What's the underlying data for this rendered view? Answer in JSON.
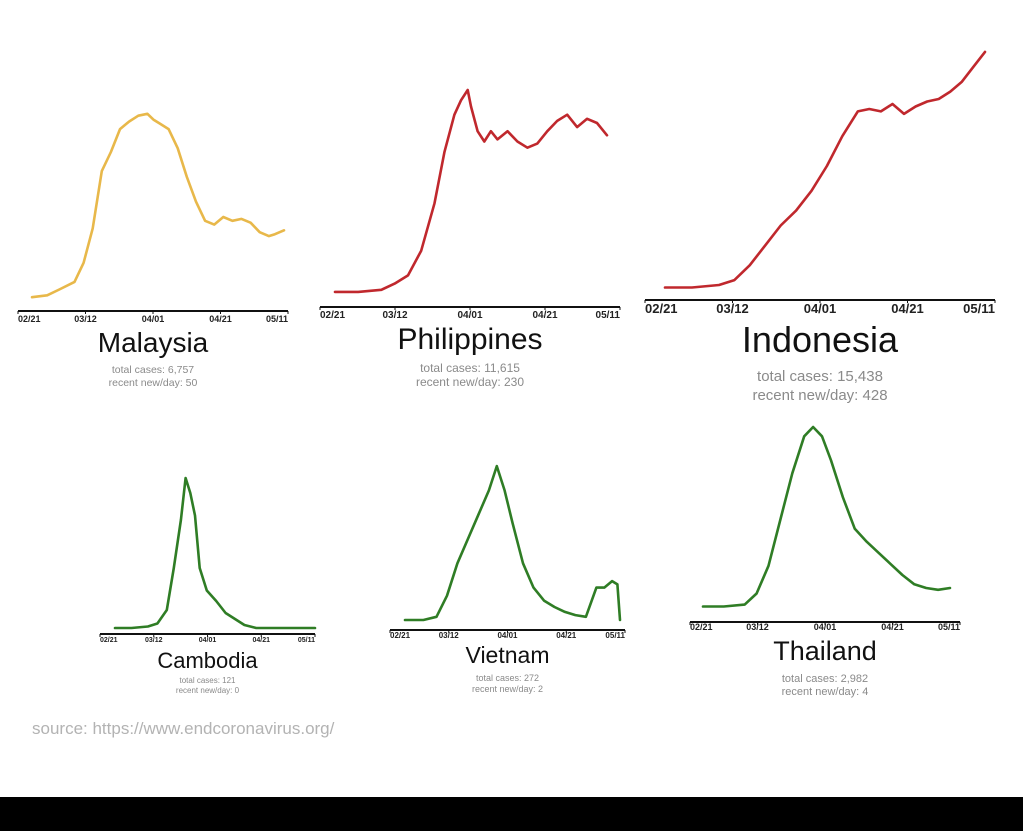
{
  "source_text": "source: https://www.endcoronavirus.org/",
  "chart_data": [
    {
      "type": "line",
      "title": "Malaysia",
      "stats": [
        "total cases: 6,757",
        "recent new/day: 50"
      ],
      "color": "#e8b84a",
      "ticks": [
        "02/21",
        "03/12",
        "04/01",
        "04/21",
        "05/11"
      ],
      "x": [
        "02/21",
        "02/26",
        "03/01",
        "03/06",
        "03/09",
        "03/12",
        "03/15",
        "03/18",
        "03/21",
        "03/24",
        "03/27",
        "03/30",
        "04/01",
        "04/03",
        "04/06",
        "04/09",
        "04/12",
        "04/15",
        "04/18",
        "04/21",
        "04/24",
        "04/27",
        "04/30",
        "05/03",
        "05/06",
        "05/09",
        "05/11",
        "05/14"
      ],
      "y": [
        2,
        3,
        6,
        10,
        20,
        38,
        68,
        78,
        90,
        94,
        97,
        98,
        95,
        93,
        90,
        80,
        65,
        52,
        42,
        40,
        44,
        42,
        43,
        41,
        36,
        34,
        35,
        37
      ]
    },
    {
      "type": "line",
      "title": "Philippines",
      "stats": [
        "total cases: 11,615",
        "recent new/day: 230"
      ],
      "color": "#c0282d",
      "ticks": [
        "02/21",
        "03/12",
        "04/01",
        "04/21",
        "05/11"
      ],
      "x": [
        "02/21",
        "02/28",
        "03/06",
        "03/10",
        "03/14",
        "03/18",
        "03/22",
        "03/25",
        "03/28",
        "03/30",
        "04/01",
        "04/02",
        "04/04",
        "04/06",
        "04/08",
        "04/10",
        "04/13",
        "04/16",
        "04/19",
        "04/22",
        "04/25",
        "04/28",
        "05/01",
        "05/04",
        "05/07",
        "05/10",
        "05/13"
      ],
      "y": [
        2,
        2,
        3,
        6,
        10,
        22,
        45,
        70,
        88,
        95,
        100,
        92,
        80,
        75,
        80,
        76,
        80,
        75,
        72,
        74,
        80,
        85,
        88,
        82,
        86,
        84,
        78
      ]
    },
    {
      "type": "line",
      "title": "Indonesia",
      "stats": [
        "total cases: 15,438",
        "recent new/day: 428"
      ],
      "color": "#c0282d",
      "ticks": [
        "02/21",
        "03/12",
        "04/01",
        "04/21",
        "05/11"
      ],
      "x": [
        "02/21",
        "02/28",
        "03/06",
        "03/10",
        "03/14",
        "03/18",
        "03/22",
        "03/26",
        "03/30",
        "04/03",
        "04/07",
        "04/11",
        "04/14",
        "04/17",
        "04/20",
        "04/23",
        "04/26",
        "04/29",
        "05/02",
        "05/05",
        "05/08",
        "05/11",
        "05/14"
      ],
      "y": [
        1,
        1,
        2,
        4,
        10,
        18,
        26,
        32,
        40,
        50,
        62,
        72,
        73,
        72,
        75,
        71,
        74,
        76,
        77,
        80,
        84,
        90,
        96
      ]
    },
    {
      "type": "line",
      "title": "Cambodia",
      "stats": [
        "total cases: 121",
        "recent new/day: 0"
      ],
      "color": "#2f7d25",
      "ticks": [
        "02/21",
        "03/12",
        "04/01",
        "04/21",
        "05/11"
      ],
      "x": [
        "02/21",
        "02/28",
        "03/06",
        "03/10",
        "03/14",
        "03/17",
        "03/20",
        "03/22",
        "03/24",
        "03/26",
        "03/28",
        "03/31",
        "04/04",
        "04/08",
        "04/12",
        "04/16",
        "04/21",
        "05/01",
        "05/11",
        "05/16"
      ],
      "y": [
        0,
        0,
        1,
        3,
        12,
        40,
        72,
        100,
        90,
        75,
        40,
        25,
        18,
        10,
        6,
        2,
        0,
        0,
        0,
        0
      ]
    },
    {
      "type": "line",
      "title": "Vietnam",
      "stats": [
        "total cases: 272",
        "recent new/day: 2"
      ],
      "color": "#2f7d25",
      "ticks": [
        "02/21",
        "03/12",
        "04/01",
        "04/21",
        "05/11"
      ],
      "x": [
        "02/21",
        "02/28",
        "03/04",
        "03/08",
        "03/12",
        "03/16",
        "03/20",
        "03/24",
        "03/27",
        "03/30",
        "04/02",
        "04/06",
        "04/10",
        "04/14",
        "04/18",
        "04/22",
        "04/26",
        "04/30",
        "05/04",
        "05/07",
        "05/10",
        "05/12",
        "05/13"
      ],
      "y": [
        0,
        0,
        2,
        15,
        35,
        50,
        65,
        80,
        95,
        80,
        60,
        35,
        20,
        12,
        8,
        5,
        3,
        2,
        20,
        20,
        24,
        22,
        0
      ]
    },
    {
      "type": "line",
      "title": "Thailand",
      "stats": [
        "total cases: 2,982",
        "recent new/day: 4"
      ],
      "color": "#2f7d25",
      "ticks": [
        "02/21",
        "03/12",
        "04/01",
        "04/21",
        "05/11"
      ],
      "x": [
        "02/21",
        "02/28",
        "03/06",
        "03/10",
        "03/14",
        "03/18",
        "03/22",
        "03/26",
        "03/29",
        "04/01",
        "04/04",
        "04/08",
        "04/12",
        "04/16",
        "04/20",
        "04/24",
        "04/28",
        "05/02",
        "05/06",
        "05/10",
        "05/14"
      ],
      "y": [
        3,
        3,
        4,
        10,
        25,
        50,
        75,
        95,
        100,
        95,
        82,
        62,
        45,
        38,
        32,
        26,
        20,
        15,
        13,
        12,
        13
      ]
    }
  ]
}
